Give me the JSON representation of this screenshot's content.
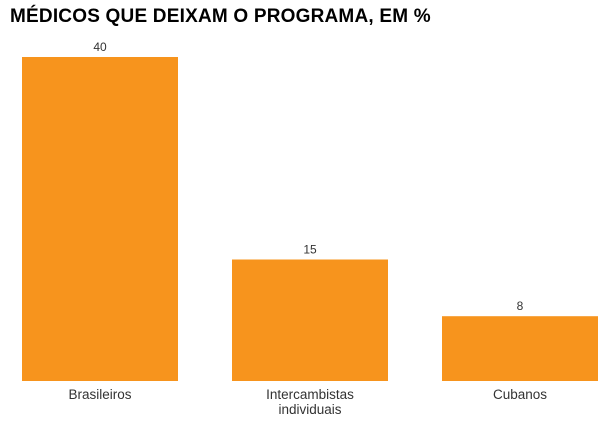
{
  "chart_data": {
    "type": "bar",
    "title": "MÉDICOS QUE DEIXAM O PROGRAMA, EM %",
    "categories": [
      [
        "Brasileiros"
      ],
      [
        "Intercambistas",
        "individuais"
      ],
      [
        "Cubanos"
      ]
    ],
    "values": [
      40,
      15,
      8
    ],
    "value_labels": [
      "40",
      "15",
      "8"
    ],
    "ylim": [
      0,
      40
    ],
    "bar_color": "#f7941d",
    "grid": false,
    "legend": "none"
  }
}
